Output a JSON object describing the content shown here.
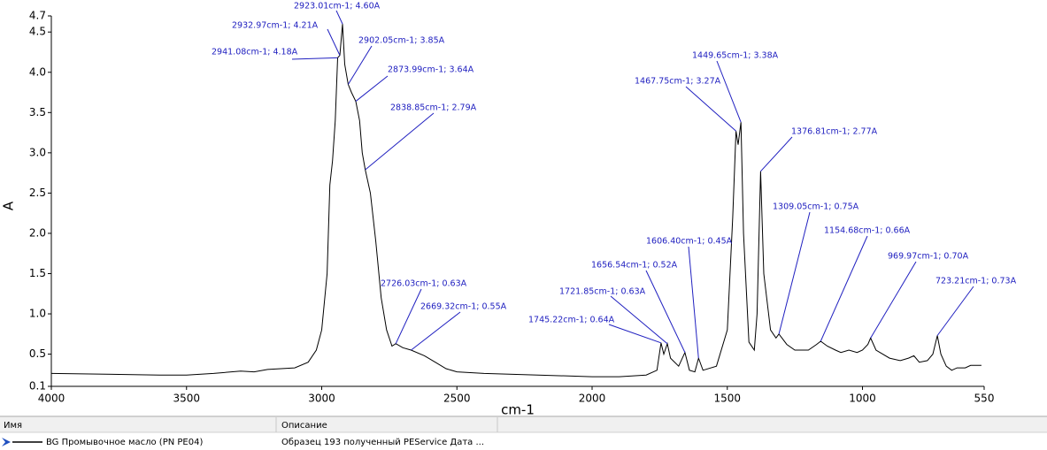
{
  "chart_data": {
    "type": "line",
    "x_label": "cm-1",
    "y_label": "A",
    "xlim": [
      4000,
      550
    ],
    "ylim": [
      0.1,
      4.7
    ],
    "xticks": [
      4000,
      3500,
      3000,
      2500,
      2000,
      1500,
      1000,
      550
    ],
    "yticks": [
      0.1,
      0.5,
      {
        "value": 1,
        "label": "1.0"
      },
      1.5,
      {
        "value": 2,
        "label": "2.0"
      },
      2.5,
      {
        "value": 3,
        "label": "3.0"
      },
      3.5,
      {
        "value": 4,
        "label": "4.0"
      },
      4.5,
      4.7
    ],
    "grid": false,
    "x": [
      4000,
      3800,
      3600,
      3500,
      3400,
      3300,
      3250,
      3200,
      3100,
      3050,
      3020,
      3000,
      2980,
      2970,
      2960,
      2950,
      2941.08,
      2932.97,
      2923.01,
      2915,
      2902.05,
      2890,
      2873.99,
      2860,
      2850,
      2838.85,
      2820,
      2800,
      2780,
      2760,
      2740,
      2726.03,
      2700,
      2669.32,
      2620,
      2580,
      2540,
      2500,
      2400,
      2200,
      2000,
      1900,
      1800,
      1760,
      1745.22,
      1735,
      1721.85,
      1710,
      1680,
      1656.54,
      1640,
      1620,
      1606.4,
      1590,
      1540,
      1500,
      1480,
      1467.75,
      1460,
      1449.65,
      1440,
      1420,
      1400,
      1390,
      1376.81,
      1365,
      1340,
      1320,
      1309.05,
      1280,
      1250,
      1200,
      1170,
      1154.68,
      1130,
      1100,
      1080,
      1050,
      1020,
      1000,
      980,
      969.97,
      950,
      900,
      860,
      830,
      810,
      790,
      760,
      740,
      723.21,
      710,
      690,
      670,
      650,
      620,
      600,
      560
    ],
    "series": [
      {
        "color": "#000000",
        "values": [
          0.26,
          0.25,
          0.24,
          0.24,
          0.26,
          0.29,
          0.28,
          0.31,
          0.33,
          0.4,
          0.55,
          0.8,
          1.5,
          2.6,
          2.9,
          3.4,
          4.18,
          4.21,
          4.6,
          4.1,
          3.85,
          3.75,
          3.64,
          3.4,
          3.0,
          2.79,
          2.5,
          1.9,
          1.2,
          0.8,
          0.6,
          0.63,
          0.58,
          0.55,
          0.48,
          0.4,
          0.32,
          0.28,
          0.26,
          0.24,
          0.22,
          0.22,
          0.24,
          0.3,
          0.64,
          0.5,
          0.63,
          0.45,
          0.35,
          0.52,
          0.3,
          0.28,
          0.45,
          0.3,
          0.35,
          0.8,
          2.2,
          3.27,
          3.1,
          3.38,
          2.0,
          0.65,
          0.55,
          1.0,
          2.77,
          1.5,
          0.8,
          0.7,
          0.75,
          0.62,
          0.55,
          0.55,
          0.62,
          0.66,
          0.6,
          0.55,
          0.52,
          0.55,
          0.52,
          0.55,
          0.62,
          0.7,
          0.55,
          0.45,
          0.42,
          0.45,
          0.48,
          0.4,
          0.42,
          0.5,
          0.73,
          0.5,
          0.35,
          0.3,
          0.33,
          0.33,
          0.36,
          0.36
        ]
      }
    ],
    "annotation_color": "#2020c0",
    "annotations": [
      {
        "text": "2923.01cm-1; 4.60A",
        "x": 2923.01,
        "y": 4.6
      },
      {
        "text": "2932.97cm-1; 4.21A",
        "x": 2932.97,
        "y": 4.21
      },
      {
        "text": "2941.08cm-1; 4.18A",
        "x": 2941.08,
        "y": 4.18
      },
      {
        "text": "2902.05cm-1; 3.85A",
        "x": 2902.05,
        "y": 3.85
      },
      {
        "text": "2873.99cm-1; 3.64A",
        "x": 2873.99,
        "y": 3.64
      },
      {
        "text": "2838.85cm-1; 2.79A",
        "x": 2838.85,
        "y": 2.79
      },
      {
        "text": "2726.03cm-1; 0.63A",
        "x": 2726.03,
        "y": 0.63
      },
      {
        "text": "2669.32cm-1; 0.55A",
        "x": 2669.32,
        "y": 0.55
      },
      {
        "text": "1745.22cm-1; 0.64A",
        "x": 1745.22,
        "y": 0.64
      },
      {
        "text": "1721.85cm-1; 0.63A",
        "x": 1721.85,
        "y": 0.63
      },
      {
        "text": "1656.54cm-1; 0.52A",
        "x": 1656.54,
        "y": 0.52
      },
      {
        "text": "1606.40cm-1; 0.45A",
        "x": 1606.4,
        "y": 0.45
      },
      {
        "text": "1467.75cm-1; 3.27A",
        "x": 1467.75,
        "y": 3.27
      },
      {
        "text": "1449.65cm-1; 3.38A",
        "x": 1449.65,
        "y": 3.38
      },
      {
        "text": "1376.81cm-1; 2.77A",
        "x": 1376.81,
        "y": 2.77
      },
      {
        "text": "1309.05cm-1; 0.75A",
        "x": 1309.05,
        "y": 0.75
      },
      {
        "text": "1154.68cm-1; 0.66A",
        "x": 1154.68,
        "y": 0.66
      },
      {
        "text": "969.97cm-1; 0.70A",
        "x": 969.97,
        "y": 0.7
      },
      {
        "text": "723.21cm-1; 0.73A",
        "x": 723.21,
        "y": 0.73
      }
    ]
  },
  "table": {
    "headers": [
      "Имя",
      "Описание"
    ],
    "rows": [
      [
        "BG Промывочное масло (PN PE04)",
        "Образец 193 полученный PEService Дата ..."
      ]
    ]
  }
}
